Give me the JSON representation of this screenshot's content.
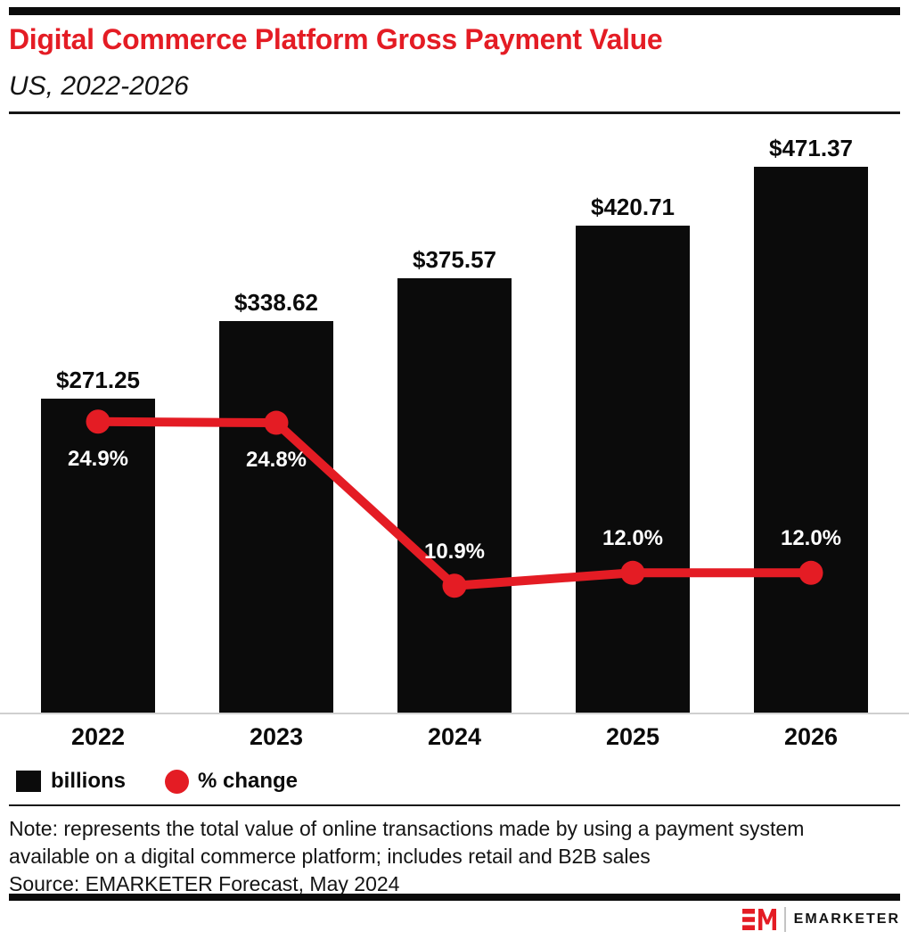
{
  "chart_data": {
    "type": "bar",
    "combo": "bar+line",
    "title": "Digital Commerce Platform Gross Payment Value",
    "subtitle": "US, 2022-2026",
    "categories": [
      "2022",
      "2023",
      "2024",
      "2025",
      "2026"
    ],
    "series": [
      {
        "name": "billions",
        "type": "bar",
        "color": "#0b0b0b",
        "values": [
          271.25,
          338.62,
          375.57,
          420.71,
          471.37
        ],
        "labels": [
          "$271.25",
          "$338.62",
          "$375.57",
          "$420.71",
          "$471.37"
        ]
      },
      {
        "name": "% change",
        "type": "line",
        "color": "#e41c24",
        "values": [
          24.9,
          24.8,
          10.9,
          12.0,
          12.0
        ],
        "labels": [
          "24.9%",
          "24.8%",
          "10.9%",
          "12.0%",
          "12.0%"
        ]
      }
    ],
    "legend": [
      {
        "label": "billions",
        "swatch": "square",
        "color": "#0b0b0b"
      },
      {
        "label": "% change",
        "swatch": "circle",
        "color": "#e41c24"
      }
    ],
    "legend_position": "bottom-left",
    "grid": false,
    "x_axis": {
      "labels_visible": true
    },
    "y_axis": {
      "labels_visible": false,
      "baseline_value": 0
    }
  },
  "footer": {
    "note_lines": [
      "Note: represents the total value of online transactions made by using a payment system",
      "available on a digital commerce platform; includes retail and B2B sales"
    ],
    "source": "Source: EMARKETER Forecast, May 2024"
  },
  "branding": {
    "monogram": "EM",
    "wordmark": "EMARKETER"
  },
  "colors": {
    "accent_red": "#e41c24",
    "bar_black": "#0b0b0b",
    "baseline_gray": "#cfcfcf"
  }
}
